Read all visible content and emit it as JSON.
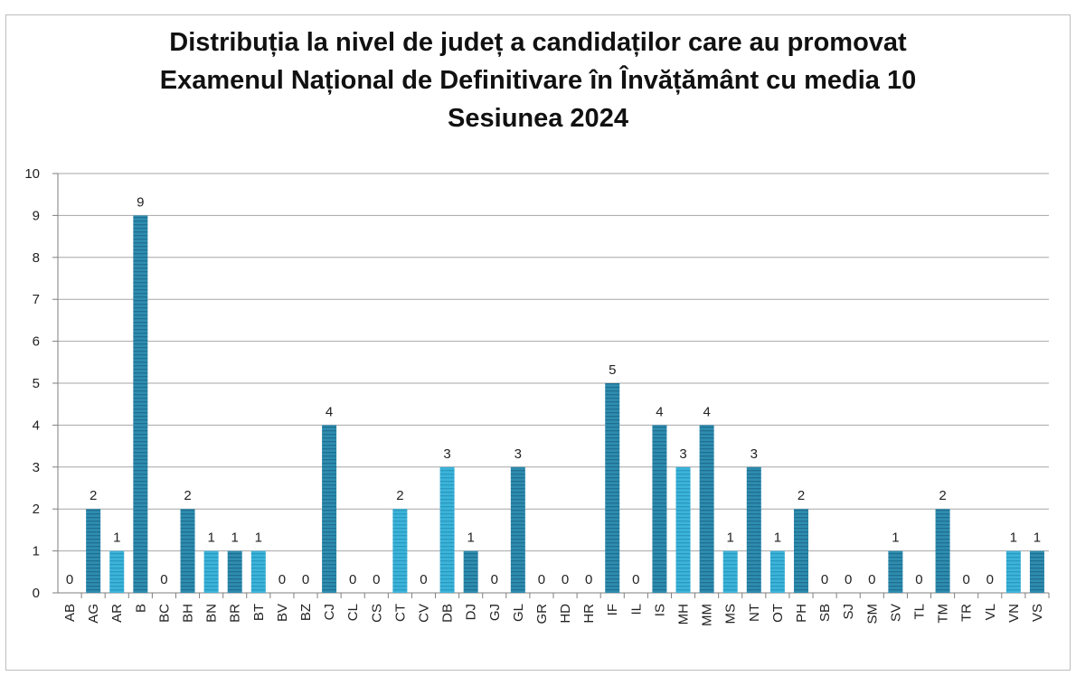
{
  "chart_data": {
    "type": "bar",
    "title": [
      "Distribuția la nivel de județ a candidaților care au promovat",
      "Examenul Național de Definitivare în Învățământ cu media 10",
      "Sesiunea 2024"
    ],
    "xlabel": "",
    "ylabel": "",
    "ylim": [
      0,
      10
    ],
    "yticks": [
      "0",
      "1",
      "2",
      "3",
      "4",
      "5",
      "6",
      "7",
      "8",
      "9",
      "10"
    ],
    "grid": true,
    "legend": "none",
    "categories": [
      "AB",
      "AG",
      "AR",
      "B",
      "BC",
      "BH",
      "BN",
      "BR",
      "BT",
      "BV",
      "BZ",
      "CJ",
      "CL",
      "CS",
      "CT",
      "CV",
      "DB",
      "DJ",
      "GJ",
      "GL",
      "GR",
      "HD",
      "HR",
      "IF",
      "IL",
      "IS",
      "MH",
      "MM",
      "MS",
      "NT",
      "OT",
      "PH",
      "SB",
      "SJ",
      "SM",
      "SV",
      "TL",
      "TM",
      "TR",
      "VL",
      "VN",
      "VS"
    ],
    "values": [
      0,
      2,
      1,
      9,
      0,
      2,
      1,
      1,
      1,
      0,
      0,
      4,
      0,
      0,
      2,
      0,
      3,
      1,
      0,
      3,
      0,
      0,
      0,
      5,
      0,
      4,
      3,
      4,
      1,
      3,
      1,
      2,
      0,
      0,
      0,
      1,
      0,
      2,
      0,
      0,
      1,
      1
    ],
    "colors": {
      "bar_dark": "#2f8fb0",
      "bar_light": "#3ab0d6",
      "grid": "#a6a6a6",
      "axis": "#7f7f7f"
    }
  }
}
